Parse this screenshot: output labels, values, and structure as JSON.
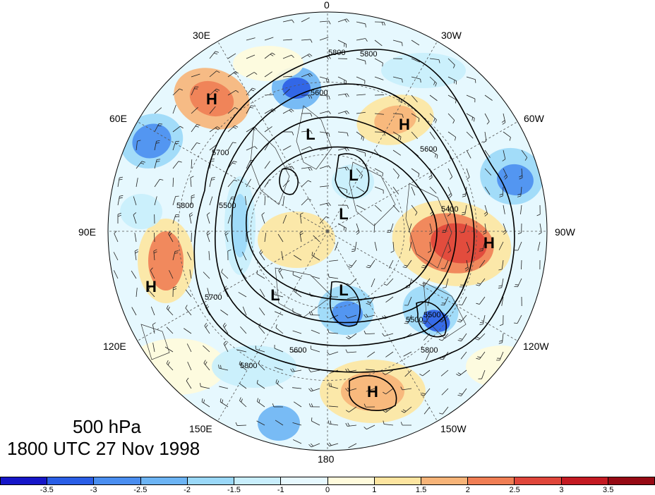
{
  "title": {
    "level": "500 hPa",
    "time": "1800 UTC 27 Nov 1998"
  },
  "longitude_labels": {
    "lon_0": "0",
    "lon_30w": "30W",
    "lon_60w": "60W",
    "lon_90w": "90W",
    "lon_120w": "120W",
    "lon_150w": "150W",
    "lon_180": "180",
    "lon_150e": "150E",
    "lon_120e": "120E",
    "lon_90e": "90E",
    "lon_60e": "60E",
    "lon_30e": "30E"
  },
  "pressure_centers": [
    {
      "label": "H"
    },
    {
      "label": "H"
    },
    {
      "label": "H"
    },
    {
      "label": "H"
    },
    {
      "label": "H"
    },
    {
      "label": "L"
    },
    {
      "label": "L"
    },
    {
      "label": "L"
    },
    {
      "label": "L"
    },
    {
      "label": "L"
    }
  ],
  "contour_labels": [
    "5800",
    "5800",
    "5600",
    "5700",
    "5800",
    "5500",
    "5600",
    "5400",
    "5500",
    "5800",
    "5800",
    "5600",
    "5700",
    "5500"
  ],
  "colorbar": {
    "tick_labels": [
      "-3.5",
      "-3",
      "-2.5",
      "-2",
      "-1.5",
      "-1",
      "0",
      "1",
      "1.5",
      "2",
      "2.5",
      "3",
      "3.5"
    ],
    "colors": [
      "#1616c8",
      "#2a5ee6",
      "#4a8ef0",
      "#6cb4f4",
      "#9ad8f8",
      "#c8eefc",
      "#e6f8fe",
      "#fffbdc",
      "#fde5a0",
      "#f7b478",
      "#f07e54",
      "#e0463a",
      "#c41a22",
      "#960a14"
    ]
  }
}
